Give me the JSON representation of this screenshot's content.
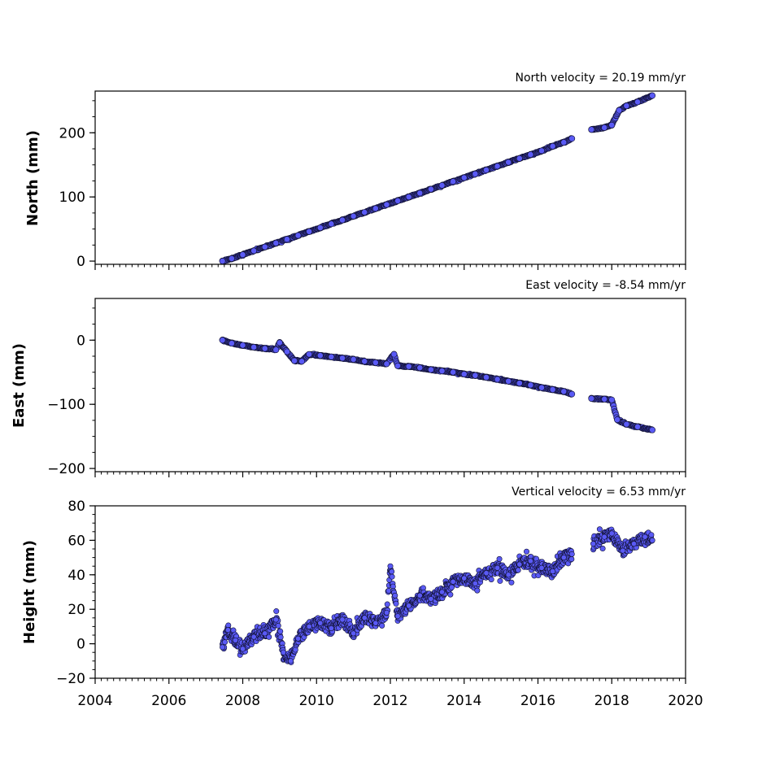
{
  "colors": {
    "marker_fill": "#5a5af5",
    "marker_edge": "#111133",
    "axes": "#000000"
  },
  "x_axis": {
    "range": [
      2004,
      2020
    ],
    "ticks": [
      2004,
      2006,
      2008,
      2010,
      2012,
      2014,
      2016,
      2018,
      2020
    ],
    "tick_labels": [
      "2004",
      "2006",
      "2008",
      "2010",
      "2012",
      "2014",
      "2016",
      "2018",
      "2020"
    ]
  },
  "panels": [
    {
      "ylabel": "North (mm)",
      "velocity_text": "North velocity = 20.19 mm/yr",
      "yticks": [
        "0",
        "100",
        "200"
      ]
    },
    {
      "ylabel": "East (mm)",
      "velocity_text": "East velocity = -8.54 mm/yr",
      "yticks": [
        "0",
        "−100",
        "−200"
      ]
    },
    {
      "ylabel": "Height (mm)",
      "velocity_text": "Vertical velocity = 6.53 mm/yr",
      "yticks": [
        "−20",
        "0",
        "20",
        "40",
        "60",
        "80"
      ]
    }
  ],
  "chart_data": [
    {
      "type": "scatter",
      "ylabel": "North (mm)",
      "annotation": "North velocity = 20.19 mm/yr",
      "xlim": [
        2004,
        2020
      ],
      "ylim": [
        -5,
        265
      ],
      "yticks": [
        0,
        100,
        200
      ],
      "series": [
        {
          "points": [
            [
              2007.45,
              0
            ],
            [
              2007.7,
              4
            ],
            [
              2008.0,
              10
            ],
            [
              2008.3,
              16
            ],
            [
              2008.6,
              22
            ],
            [
              2008.9,
              28
            ],
            [
              2009.2,
              34
            ],
            [
              2009.5,
              40
            ],
            [
              2009.8,
              46
            ],
            [
              2010.1,
              52
            ],
            [
              2010.4,
              58
            ],
            [
              2010.7,
              64
            ],
            [
              2011.0,
              70
            ],
            [
              2011.3,
              76
            ],
            [
              2011.6,
              82
            ],
            [
              2011.9,
              88
            ],
            [
              2012.2,
              94
            ],
            [
              2012.5,
              100
            ],
            [
              2012.8,
              106
            ],
            [
              2013.1,
              112
            ],
            [
              2013.4,
              118
            ],
            [
              2013.7,
              124
            ],
            [
              2014.0,
              130
            ],
            [
              2014.3,
              136
            ],
            [
              2014.6,
              142
            ],
            [
              2014.9,
              148
            ],
            [
              2015.2,
              154
            ],
            [
              2015.5,
              160
            ],
            [
              2015.8,
              166
            ],
            [
              2016.1,
              172
            ],
            [
              2016.4,
              179
            ],
            [
              2016.7,
              185
            ],
            [
              2016.92,
              191
            ],
            [
              2017.45,
              205
            ],
            [
              2017.8,
              208
            ],
            [
              2018.0,
              212
            ],
            [
              2018.2,
              235
            ],
            [
              2018.4,
              242
            ],
            [
              2018.7,
              248
            ],
            [
              2019.1,
              258
            ]
          ]
        }
      ]
    },
    {
      "type": "scatter",
      "ylabel": "East (mm)",
      "annotation": "East velocity = -8.54 mm/yr",
      "xlim": [
        2004,
        2020
      ],
      "ylim": [
        -205,
        65
      ],
      "yticks": [
        0,
        -100,
        -200
      ],
      "series": [
        {
          "points": [
            [
              2007.45,
              0
            ],
            [
              2007.7,
              -5
            ],
            [
              2008.0,
              -8
            ],
            [
              2008.3,
              -11
            ],
            [
              2008.6,
              -13
            ],
            [
              2008.9,
              -15
            ],
            [
              2009.0,
              -4
            ],
            [
              2009.2,
              -18
            ],
            [
              2009.4,
              -32
            ],
            [
              2009.6,
              -33
            ],
            [
              2009.8,
              -22
            ],
            [
              2010.1,
              -24
            ],
            [
              2010.4,
              -26
            ],
            [
              2010.7,
              -28
            ],
            [
              2011.0,
              -30
            ],
            [
              2011.3,
              -33
            ],
            [
              2011.6,
              -35
            ],
            [
              2011.9,
              -37
            ],
            [
              2012.1,
              -22
            ],
            [
              2012.2,
              -40
            ],
            [
              2012.5,
              -41
            ],
            [
              2012.8,
              -43
            ],
            [
              2013.1,
              -46
            ],
            [
              2013.4,
              -48
            ],
            [
              2013.7,
              -50
            ],
            [
              2014.0,
              -53
            ],
            [
              2014.3,
              -55
            ],
            [
              2014.6,
              -58
            ],
            [
              2014.9,
              -61
            ],
            [
              2015.2,
              -64
            ],
            [
              2015.5,
              -67
            ],
            [
              2015.8,
              -70
            ],
            [
              2016.1,
              -74
            ],
            [
              2016.4,
              -77
            ],
            [
              2016.7,
              -80
            ],
            [
              2016.92,
              -84
            ],
            [
              2017.45,
              -91
            ],
            [
              2017.8,
              -92
            ],
            [
              2018.0,
              -93
            ],
            [
              2018.15,
              -124
            ],
            [
              2018.4,
              -131
            ],
            [
              2018.7,
              -135
            ],
            [
              2019.1,
              -140
            ]
          ]
        }
      ]
    },
    {
      "type": "scatter",
      "ylabel": "Height (mm)",
      "annotation": "Vertical velocity = 6.53 mm/yr",
      "xlim": [
        2004,
        2020
      ],
      "ylim": [
        -20,
        80
      ],
      "yticks": [
        -20,
        0,
        20,
        40,
        60,
        80
      ],
      "series": [
        {
          "points": [
            [
              2007.45,
              -2
            ],
            [
              2007.6,
              8
            ],
            [
              2007.8,
              2
            ],
            [
              2008.0,
              -3
            ],
            [
              2008.3,
              4
            ],
            [
              2008.6,
              6
            ],
            [
              2008.9,
              14
            ],
            [
              2009.1,
              -5
            ],
            [
              2009.3,
              -10
            ],
            [
              2009.5,
              3
            ],
            [
              2009.8,
              10
            ],
            [
              2010.1,
              12
            ],
            [
              2010.4,
              9
            ],
            [
              2010.7,
              14
            ],
            [
              2011.0,
              6
            ],
            [
              2011.3,
              15
            ],
            [
              2011.6,
              12
            ],
            [
              2011.9,
              18
            ],
            [
              2012.0,
              45
            ],
            [
              2012.2,
              16
            ],
            [
              2012.5,
              22
            ],
            [
              2012.8,
              28
            ],
            [
              2013.1,
              26
            ],
            [
              2013.4,
              30
            ],
            [
              2013.7,
              36
            ],
            [
              2014.0,
              38
            ],
            [
              2014.3,
              35
            ],
            [
              2014.6,
              41
            ],
            [
              2014.9,
              44
            ],
            [
              2015.2,
              40
            ],
            [
              2015.5,
              46
            ],
            [
              2015.8,
              48
            ],
            [
              2016.1,
              44
            ],
            [
              2016.4,
              42
            ],
            [
              2016.7,
              50
            ],
            [
              2016.92,
              52
            ],
            [
              2017.5,
              58
            ],
            [
              2017.8,
              62
            ],
            [
              2018.0,
              64
            ],
            [
              2018.3,
              54
            ],
            [
              2018.6,
              58
            ],
            [
              2018.9,
              62
            ],
            [
              2019.1,
              60
            ]
          ]
        }
      ]
    }
  ]
}
